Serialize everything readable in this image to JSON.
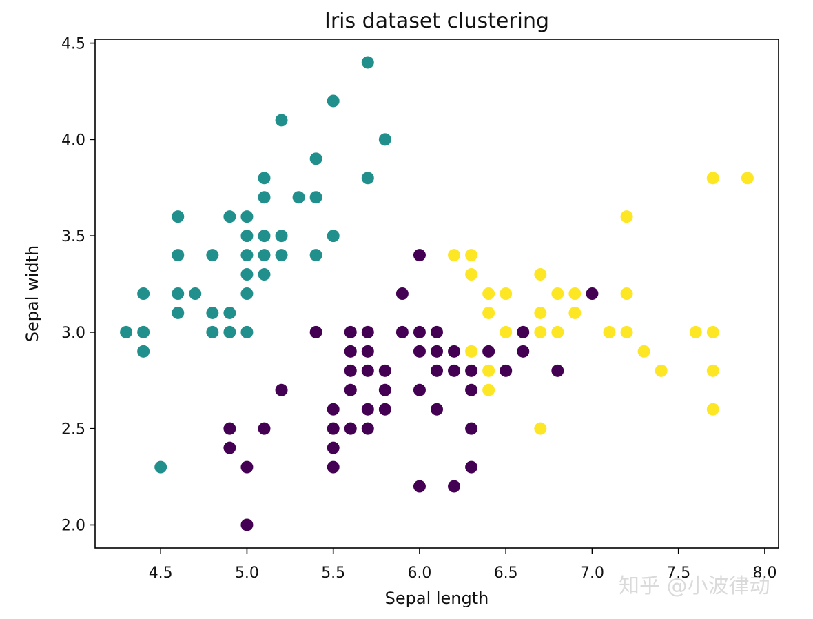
{
  "chart_data": {
    "type": "scatter",
    "title": "Iris dataset clustering",
    "xlabel": "Sepal length",
    "ylabel": "Sepal width",
    "xlim": [
      4.12,
      8.08
    ],
    "ylim": [
      1.88,
      4.52
    ],
    "xticks": [
      4.5,
      5.0,
      5.5,
      6.0,
      6.5,
      7.0,
      7.5,
      8.0
    ],
    "yticks": [
      2.0,
      2.5,
      3.0,
      3.5,
      4.0,
      4.5
    ],
    "xtick_labels": [
      "4.5",
      "5.0",
      "5.5",
      "6.0",
      "6.5",
      "7.0",
      "7.5",
      "8.0"
    ],
    "ytick_labels": [
      "2.0",
      "2.5",
      "3.0",
      "3.5",
      "4.0",
      "4.5"
    ],
    "grid": false,
    "series": [
      {
        "color": "#21908d",
        "points": [
          [
            5.7,
            4.4
          ],
          [
            5.5,
            4.2
          ],
          [
            5.2,
            4.1
          ],
          [
            5.8,
            4.0
          ],
          [
            5.4,
            3.9
          ],
          [
            5.1,
            3.8
          ],
          [
            5.7,
            3.8
          ],
          [
            5.1,
            3.7
          ],
          [
            5.3,
            3.7
          ],
          [
            5.4,
            3.7
          ],
          [
            4.6,
            3.6
          ],
          [
            4.9,
            3.6
          ],
          [
            5.0,
            3.6
          ],
          [
            5.0,
            3.5
          ],
          [
            5.1,
            3.5
          ],
          [
            5.2,
            3.5
          ],
          [
            5.5,
            3.5
          ],
          [
            4.6,
            3.4
          ],
          [
            4.8,
            3.4
          ],
          [
            5.0,
            3.4
          ],
          [
            5.1,
            3.4
          ],
          [
            5.2,
            3.4
          ],
          [
            5.4,
            3.4
          ],
          [
            5.0,
            3.3
          ],
          [
            5.1,
            3.3
          ],
          [
            4.4,
            3.2
          ],
          [
            4.6,
            3.2
          ],
          [
            4.7,
            3.2
          ],
          [
            5.0,
            3.2
          ],
          [
            4.6,
            3.1
          ],
          [
            4.8,
            3.1
          ],
          [
            4.9,
            3.1
          ],
          [
            4.3,
            3.0
          ],
          [
            4.4,
            3.0
          ],
          [
            4.8,
            3.0
          ],
          [
            4.9,
            3.0
          ],
          [
            5.0,
            3.0
          ],
          [
            4.4,
            2.9
          ],
          [
            4.5,
            2.3
          ]
        ]
      },
      {
        "color": "#440154",
        "points": [
          [
            6.0,
            3.4
          ],
          [
            5.9,
            3.2
          ],
          [
            7.0,
            3.2
          ],
          [
            5.4,
            3.0
          ],
          [
            5.6,
            3.0
          ],
          [
            5.7,
            3.0
          ],
          [
            5.9,
            3.0
          ],
          [
            6.0,
            3.0
          ],
          [
            6.1,
            3.0
          ],
          [
            6.6,
            3.0
          ],
          [
            5.6,
            2.9
          ],
          [
            5.7,
            2.9
          ],
          [
            6.0,
            2.9
          ],
          [
            6.1,
            2.9
          ],
          [
            6.2,
            2.9
          ],
          [
            6.4,
            2.9
          ],
          [
            6.6,
            2.9
          ],
          [
            5.6,
            2.8
          ],
          [
            5.7,
            2.8
          ],
          [
            5.8,
            2.8
          ],
          [
            6.1,
            2.8
          ],
          [
            6.2,
            2.8
          ],
          [
            6.3,
            2.8
          ],
          [
            6.5,
            2.8
          ],
          [
            6.8,
            2.8
          ],
          [
            5.2,
            2.7
          ],
          [
            5.6,
            2.7
          ],
          [
            5.8,
            2.7
          ],
          [
            6.0,
            2.7
          ],
          [
            6.3,
            2.7
          ],
          [
            5.5,
            2.6
          ],
          [
            5.7,
            2.6
          ],
          [
            5.8,
            2.6
          ],
          [
            6.1,
            2.6
          ],
          [
            4.9,
            2.5
          ],
          [
            5.1,
            2.5
          ],
          [
            5.5,
            2.5
          ],
          [
            5.6,
            2.5
          ],
          [
            5.7,
            2.5
          ],
          [
            6.3,
            2.5
          ],
          [
            4.9,
            2.4
          ],
          [
            5.5,
            2.4
          ],
          [
            5.0,
            2.3
          ],
          [
            5.5,
            2.3
          ],
          [
            6.3,
            2.3
          ],
          [
            6.0,
            2.2
          ],
          [
            6.2,
            2.2
          ],
          [
            5.0,
            2.0
          ]
        ]
      },
      {
        "color": "#fde725",
        "points": [
          [
            7.7,
            3.8
          ],
          [
            7.9,
            3.8
          ],
          [
            7.2,
            3.6
          ],
          [
            6.2,
            3.4
          ],
          [
            6.3,
            3.4
          ],
          [
            6.3,
            3.3
          ],
          [
            6.7,
            3.3
          ],
          [
            6.4,
            3.2
          ],
          [
            6.5,
            3.2
          ],
          [
            6.8,
            3.2
          ],
          [
            6.9,
            3.2
          ],
          [
            7.2,
            3.2
          ],
          [
            6.4,
            3.1
          ],
          [
            6.7,
            3.1
          ],
          [
            6.9,
            3.1
          ],
          [
            6.5,
            3.0
          ],
          [
            6.7,
            3.0
          ],
          [
            6.8,
            3.0
          ],
          [
            7.1,
            3.0
          ],
          [
            7.2,
            3.0
          ],
          [
            7.6,
            3.0
          ],
          [
            7.7,
            3.0
          ],
          [
            6.3,
            2.9
          ],
          [
            7.3,
            2.9
          ],
          [
            6.4,
            2.8
          ],
          [
            7.4,
            2.8
          ],
          [
            7.7,
            2.8
          ],
          [
            6.4,
            2.7
          ],
          [
            7.7,
            2.6
          ],
          [
            6.7,
            2.5
          ]
        ]
      }
    ]
  },
  "watermark": {
    "text": "知乎 @小波律动"
  }
}
